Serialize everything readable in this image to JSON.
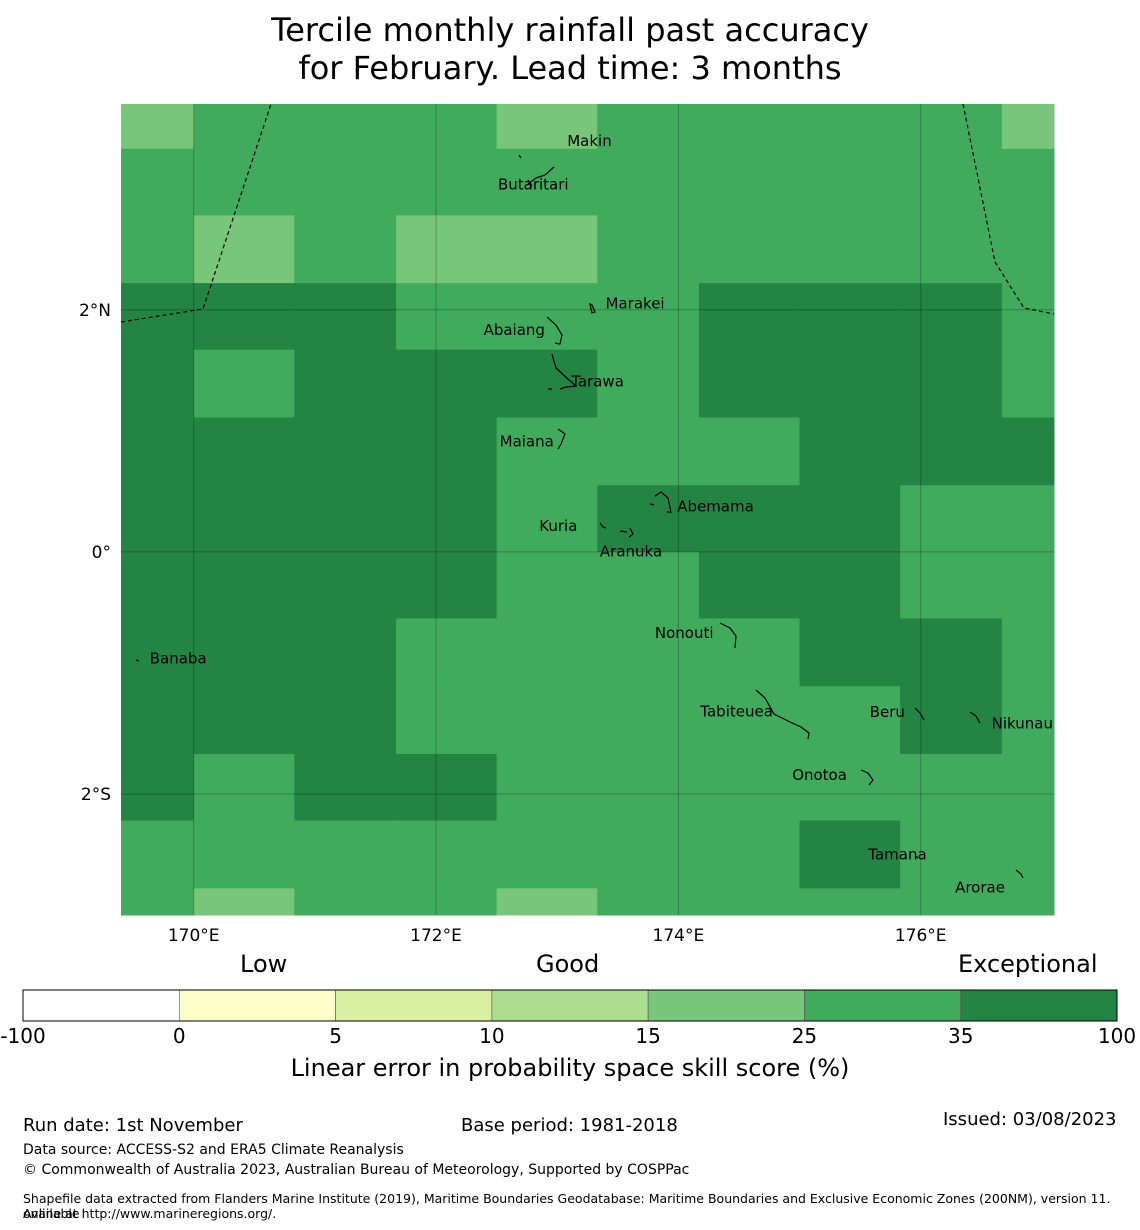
{
  "title_line1": "Tercile monthly rainfall past accuracy",
  "title_line2": "for February. Lead time: 3 months",
  "colors": {
    "c15_25": "#78c679",
    "c25_35": "#41ab5d",
    "c35_100": "#238443",
    "c10_15": "#addd8e",
    "c5_10": "#d9f0a3",
    "c0_5": "#ffffcc",
    "cneg": "#ffffff"
  },
  "map": {
    "lon_range": [
      169.4,
      177.1
    ],
    "lat_range": [
      -3.0,
      3.7
    ],
    "grid_lon_edges": [
      169.4,
      170.0,
      170.83,
      171.67,
      172.5,
      173.33,
      174.17,
      175.0,
      175.83,
      176.67,
      177.1
    ],
    "grid_lat_edges": [
      3.7,
      3.33,
      2.78,
      2.22,
      1.67,
      1.11,
      0.55,
      0.0,
      -0.55,
      -1.11,
      -1.67,
      -2.22,
      -2.78,
      -3.0
    ],
    "grid_skill_class": [
      [
        "c15_25",
        "c25_35",
        "c25_35",
        "c25_35",
        "c15_25",
        "c25_35",
        "c25_35",
        "c25_35",
        "c25_35",
        "c15_25"
      ],
      [
        "c25_35",
        "c25_35",
        "c25_35",
        "c25_35",
        "c25_35",
        "c25_35",
        "c25_35",
        "c25_35",
        "c25_35",
        "c25_35"
      ],
      [
        "c25_35",
        "c15_25",
        "c25_35",
        "c15_25",
        "c15_25",
        "c25_35",
        "c25_35",
        "c25_35",
        "c25_35",
        "c25_35"
      ],
      [
        "c35_100",
        "c35_100",
        "c35_100",
        "c25_35",
        "c25_35",
        "c25_35",
        "c35_100",
        "c35_100",
        "c35_100",
        "c25_35"
      ],
      [
        "c35_100",
        "c25_35",
        "c35_100",
        "c35_100",
        "c35_100",
        "c25_35",
        "c35_100",
        "c35_100",
        "c35_100",
        "c25_35"
      ],
      [
        "c35_100",
        "c35_100",
        "c35_100",
        "c35_100",
        "c25_35",
        "c25_35",
        "c25_35",
        "c35_100",
        "c35_100",
        "c35_100"
      ],
      [
        "c35_100",
        "c35_100",
        "c35_100",
        "c35_100",
        "c25_35",
        "c35_100",
        "c35_100",
        "c35_100",
        "c25_35",
        "c25_35"
      ],
      [
        "c35_100",
        "c35_100",
        "c35_100",
        "c35_100",
        "c25_35",
        "c25_35",
        "c35_100",
        "c35_100",
        "c25_35",
        "c25_35"
      ],
      [
        "c35_100",
        "c35_100",
        "c35_100",
        "c25_35",
        "c25_35",
        "c25_35",
        "c25_35",
        "c35_100",
        "c35_100",
        "c25_35"
      ],
      [
        "c35_100",
        "c35_100",
        "c35_100",
        "c25_35",
        "c25_35",
        "c25_35",
        "c25_35",
        "c25_35",
        "c35_100",
        "c25_35"
      ],
      [
        "c35_100",
        "c25_35",
        "c35_100",
        "c35_100",
        "c25_35",
        "c25_35",
        "c25_35",
        "c25_35",
        "c25_35",
        "c25_35"
      ],
      [
        "c25_35",
        "c25_35",
        "c25_35",
        "c25_35",
        "c25_35",
        "c25_35",
        "c25_35",
        "c35_100",
        "c25_35",
        "c25_35"
      ],
      [
        "c25_35",
        "c15_25",
        "c25_35",
        "c25_35",
        "c15_25",
        "c25_35",
        "c25_35",
        "c25_35",
        "c25_35",
        "c25_35"
      ]
    ],
    "lon_gridlines": [
      170,
      172,
      174,
      176
    ],
    "lat_gridlines": [
      2,
      0,
      -2
    ],
    "lon_labels": [
      "170°E",
      "172°E",
      "174°E",
      "176°E"
    ],
    "lat_labels": [
      "2°N",
      "0°",
      "2°S"
    ],
    "islands": [
      {
        "name": "Makin",
        "lon": 173.0,
        "lat": 3.33
      },
      {
        "name": "Butaritari",
        "lon": 172.8,
        "lat": 3.07
      },
      {
        "name": "Marakei",
        "lon": 173.3,
        "lat": 2.02
      },
      {
        "name": "Abaiang",
        "lon": 172.97,
        "lat": 1.85
      },
      {
        "name": "Tarawa",
        "lon": 173.0,
        "lat": 1.45
      },
      {
        "name": "Maiana",
        "lon": 173.02,
        "lat": 0.93
      },
      {
        "name": "Abemama",
        "lon": 173.85,
        "lat": 0.4
      },
      {
        "name": "Kuria",
        "lon": 173.43,
        "lat": 0.23
      },
      {
        "name": "Aranuka",
        "lon": 173.6,
        "lat": 0.17
      },
      {
        "name": "Nonouti",
        "lon": 174.45,
        "lat": -0.67
      },
      {
        "name": "Banaba",
        "lon": 169.53,
        "lat": -0.88
      },
      {
        "name": "Tabiteuea",
        "lon": 174.8,
        "lat": -1.35
      },
      {
        "name": "Beru",
        "lon": 176.0,
        "lat": -1.33
      },
      {
        "name": "Nikunau",
        "lon": 176.47,
        "lat": -1.37
      },
      {
        "name": "Onotoa",
        "lon": 175.55,
        "lat": -1.82
      },
      {
        "name": "Tamana",
        "lon": 175.98,
        "lat": -2.5
      },
      {
        "name": "Arorae",
        "lon": 176.82,
        "lat": -2.65
      }
    ]
  },
  "colorbar": {
    "category_labels": [
      "Low",
      "Good",
      "Exceptional"
    ],
    "bounds": [
      -100,
      0,
      5,
      10,
      15,
      25,
      35,
      100
    ],
    "tick_labels": [
      "-100",
      "0",
      "5",
      "10",
      "15",
      "25",
      "35",
      "100"
    ],
    "colors": [
      "#ffffff",
      "#ffffcc",
      "#d9f0a3",
      "#addd8e",
      "#78c679",
      "#41ab5d",
      "#238443"
    ],
    "title": "Linear error in probability space skill score (%)"
  },
  "footer": {
    "run_date": "Run date: 1st November",
    "base_period": "Base period: 1981-2018",
    "issued": "Issued: 03/08/2023",
    "data_source": "Data source: ACCESS-S2 and ERA5 Climate Reanalysis",
    "copyright": "© Commonwealth of Australia 2023, Australian Bureau of Meteorology, Supported by COSPPac",
    "shapefile_line1": "Shapefile data extracted from Flanders Marine Institute (2019), Maritime Boundaries Geodatabase: Maritime Boundaries and Exclusive Economic Zones (200NM), version 11. Available",
    "shapefile_line2": "online at http://www.marineregions.org/."
  }
}
